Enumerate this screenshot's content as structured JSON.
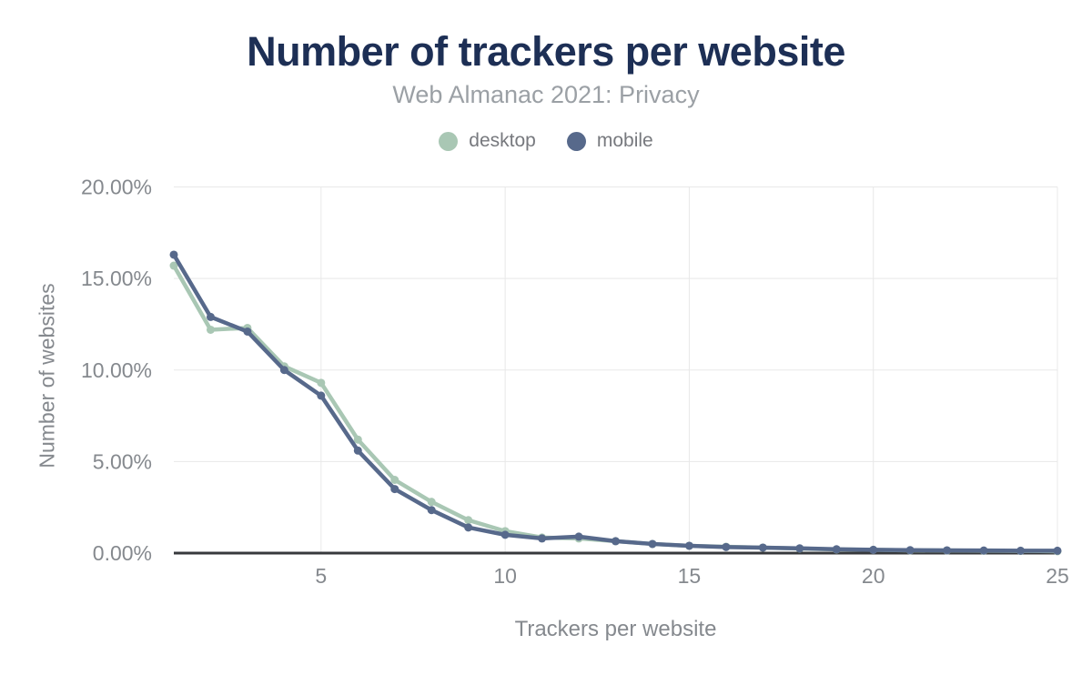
{
  "page": {
    "title": "Number of trackers per website",
    "subtitle": "Web Almanac 2021: Privacy"
  },
  "colors": {
    "title_text": "#1d2f55",
    "subtitle_text": "#9ba0a5",
    "axis_title_text": "#85898e",
    "tick_label": "#85898e",
    "legend_text": "#77797e",
    "gridline": "#e8e8e8",
    "axis_line": "#37393c",
    "background": "#ffffff",
    "desktop_series": "#a9c7b4",
    "mobile_series": "#57698b"
  },
  "legend": {
    "items": [
      {
        "label": "desktop",
        "color": "#a9c7b4"
      },
      {
        "label": "mobile",
        "color": "#57698b"
      }
    ]
  },
  "chart_data": {
    "type": "line",
    "title": "Number of trackers per website",
    "subtitle": "Web Almanac 2021: Privacy",
    "xlabel": "Trackers per website",
    "ylabel": "Number of websites",
    "unit": "percent of websites",
    "grid": true,
    "legend_position": "top",
    "marker": "circle",
    "xlim": [
      1,
      25
    ],
    "ylim": [
      0,
      20
    ],
    "x_ticks": [
      5,
      10,
      15,
      20,
      25
    ],
    "y_tick_values": [
      0,
      5,
      10,
      15,
      20
    ],
    "y_ticks": [
      "0.00%",
      "5.00%",
      "10.00%",
      "15.00%",
      "20.00%"
    ],
    "x": [
      1,
      2,
      3,
      4,
      5,
      6,
      7,
      8,
      9,
      10,
      11,
      12,
      13,
      14,
      15,
      16,
      17,
      18,
      19,
      20,
      21,
      22,
      23,
      24,
      25
    ],
    "series": [
      {
        "name": "desktop",
        "color": "#a9c7b4",
        "values": [
          15.7,
          12.2,
          12.3,
          10.2,
          9.3,
          6.2,
          4.0,
          2.8,
          1.8,
          1.2,
          0.85,
          0.8,
          0.65,
          0.5,
          0.4,
          0.35,
          0.3,
          0.25,
          0.2,
          0.18,
          0.15,
          0.14,
          0.13,
          0.12,
          0.1
        ]
      },
      {
        "name": "mobile",
        "color": "#57698b",
        "values": [
          16.3,
          12.9,
          12.1,
          10.0,
          8.6,
          5.6,
          3.5,
          2.35,
          1.4,
          1.0,
          0.8,
          0.9,
          0.65,
          0.5,
          0.4,
          0.33,
          0.3,
          0.26,
          0.21,
          0.18,
          0.16,
          0.15,
          0.14,
          0.13,
          0.13
        ]
      }
    ]
  }
}
